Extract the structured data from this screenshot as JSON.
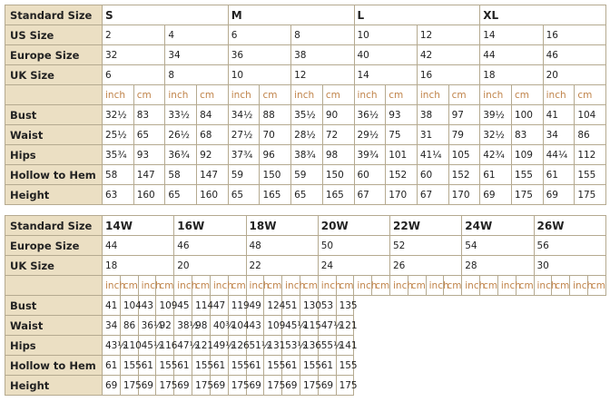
{
  "top_table": {
    "header_label": "Standard Size",
    "sizes": [
      "S",
      "M",
      "L",
      "XL"
    ],
    "size_rows": [
      {
        "label": "US Size",
        "values": [
          "2",
          "4",
          "6",
          "8",
          "10",
          "12",
          "14",
          "16"
        ]
      },
      {
        "label": "Europe Size",
        "values": [
          "32",
          "34",
          "36",
          "38",
          "40",
          "42",
          "44",
          "46"
        ]
      },
      {
        "label": "UK Size",
        "values": [
          "6",
          "8",
          "10",
          "12",
          "14",
          "16",
          "18",
          "20"
        ]
      }
    ],
    "units": [
      "inch",
      "cm"
    ],
    "measure_rows": [
      {
        "label": "Bust",
        "values": [
          "32½",
          "83",
          "33½",
          "84",
          "34½",
          "88",
          "35½",
          "90",
          "36½",
          "93",
          "38",
          "97",
          "39½",
          "100",
          "41",
          "104"
        ]
      },
      {
        "label": "Waist",
        "values": [
          "25½",
          "65",
          "26½",
          "68",
          "27½",
          "70",
          "28½",
          "72",
          "29½",
          "75",
          "31",
          "79",
          "32½",
          "83",
          "34",
          "86"
        ]
      },
      {
        "label": "Hips",
        "values": [
          "35¾",
          "93",
          "36¾",
          "92",
          "37¾",
          "96",
          "38¾",
          "98",
          "39¾",
          "101",
          "41¼",
          "105",
          "42¾",
          "109",
          "44¼",
          "112"
        ]
      },
      {
        "label": "Hollow to Hem",
        "values": [
          "58",
          "147",
          "58",
          "147",
          "59",
          "150",
          "59",
          "150",
          "60",
          "152",
          "60",
          "152",
          "61",
          "155",
          "61",
          "155"
        ]
      },
      {
        "label": "Height",
        "values": [
          "63",
          "160",
          "65",
          "160",
          "65",
          "165",
          "65",
          "165",
          "67",
          "170",
          "67",
          "170",
          "69",
          "175",
          "69",
          "175"
        ]
      }
    ]
  },
  "bottom_table": {
    "header_label": "Standard Size",
    "sizes": [
      "14W",
      "16W",
      "18W",
      "20W",
      "22W",
      "24W",
      "26W"
    ],
    "size_rows": [
      {
        "label": "Europe Size",
        "values": [
          "44",
          "46",
          "48",
          "50",
          "52",
          "54",
          "56"
        ]
      },
      {
        "label": "UK Size",
        "values": [
          "18",
          "20",
          "22",
          "24",
          "26",
          "28",
          "30"
        ]
      }
    ],
    "units": [
      "inch",
      "cm"
    ],
    "measure_rows": [
      {
        "label": "Bust",
        "values": [
          "41",
          "104",
          "43",
          "109",
          "45",
          "114",
          "47",
          "119",
          "49",
          "124",
          "51",
          "130",
          "53",
          "135"
        ]
      },
      {
        "label": "Waist",
        "values": [
          "34",
          "86",
          "36¼",
          "92",
          "38½",
          "98",
          "40¾",
          "104",
          "43",
          "109",
          "45¼",
          "115",
          "47½",
          "121"
        ]
      },
      {
        "label": "Hips",
        "values": [
          "43½",
          "110",
          "45½",
          "116",
          "47½",
          "121",
          "49½",
          "126",
          "51½",
          "131",
          "53½",
          "136",
          "55½",
          "141"
        ]
      },
      {
        "label": "Hollow to Hem",
        "values": [
          "61",
          "155",
          "61",
          "155",
          "61",
          "155",
          "61",
          "155",
          "61",
          "155",
          "61",
          "155",
          "61",
          "155"
        ]
      },
      {
        "label": "Height",
        "values": [
          "69",
          "175",
          "69",
          "175",
          "69",
          "175",
          "69",
          "175",
          "69",
          "175",
          "69",
          "175",
          "69",
          "175"
        ]
      }
    ]
  },
  "colors": {
    "label_bg": "#ebdfc3",
    "border": "#b5aa90",
    "unit_text": "#c0844a"
  }
}
